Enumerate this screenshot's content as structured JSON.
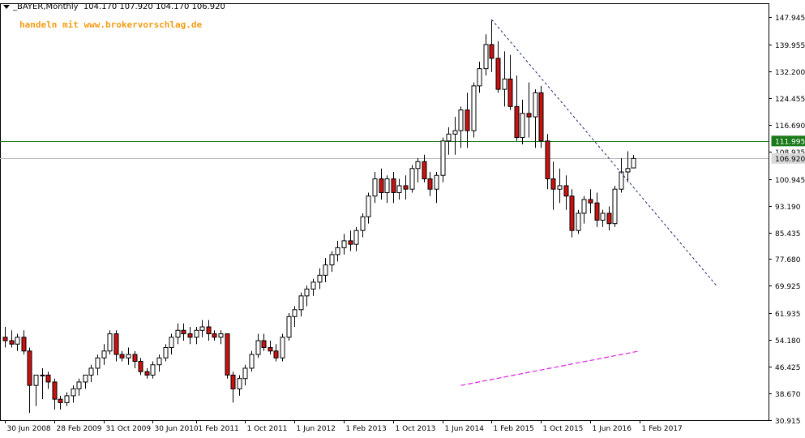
{
  "header": {
    "title": "_BAYER,Monthly",
    "ohlc": "104.170 107.920 104.170 106.920"
  },
  "watermark": "handeln mit www.brokervorschlag.de",
  "colors": {
    "bull_body": "#ffffff",
    "bear_body": "#cc1111",
    "candle_outline": "#000000",
    "grid": "#000000",
    "resistance_line": "#1a7a1a",
    "price_line": "#b8b8b8",
    "trendline": "#1a2a6c",
    "ma_line": "#e020e0"
  },
  "chart_data": {
    "type": "candlestick",
    "ylim": [
      30.915,
      152.0
    ],
    "y_ticks": [
      "147.945",
      "139.955",
      "132.200",
      "124.455",
      "116.690",
      "108.935",
      "100.945",
      "93.190",
      "85.435",
      "77.680",
      "69.925",
      "61.935",
      "54.180",
      "46.425",
      "38.670",
      "30.915"
    ],
    "x_ticks": [
      {
        "label": "30 Jun 2008",
        "index": 0
      },
      {
        "label": "28 Feb 2009",
        "index": 8
      },
      {
        "label": "31 Oct 2009",
        "index": 16
      },
      {
        "label": "30 Jun 2010",
        "index": 24
      },
      {
        "label": "1 Feb 2011",
        "index": 31
      },
      {
        "label": "1 Oct 2011",
        "index": 39
      },
      {
        "label": "1 Jun 2012",
        "index": 47
      },
      {
        "label": "1 Feb 2013",
        "index": 55
      },
      {
        "label": "1 Oct 2013",
        "index": 63
      },
      {
        "label": "1 Jun 2014",
        "index": 71
      },
      {
        "label": "1 Feb 2015",
        "index": 79
      },
      {
        "label": "1 Oct 2015",
        "index": 87
      },
      {
        "label": "1 Jun 2016",
        "index": 95
      },
      {
        "label": "1 Feb 2017",
        "index": 103
      }
    ],
    "ohlc": [
      [
        55,
        58,
        52,
        54
      ],
      [
        54,
        57,
        52,
        53
      ],
      [
        53,
        56,
        51,
        55
      ],
      [
        55,
        57,
        50,
        51
      ],
      [
        51,
        52,
        33,
        41
      ],
      [
        41,
        44,
        35,
        44
      ],
      [
        44,
        46,
        37,
        44
      ],
      [
        44,
        45,
        40,
        42
      ],
      [
        42,
        43,
        34,
        37
      ],
      [
        37,
        38,
        34,
        36
      ],
      [
        36,
        39,
        35,
        38
      ],
      [
        38,
        41,
        36,
        40
      ],
      [
        40,
        43,
        38,
        42
      ],
      [
        42,
        44,
        40,
        44
      ],
      [
        44,
        47,
        42,
        46
      ],
      [
        46,
        50,
        44,
        49
      ],
      [
        49,
        53,
        47,
        51
      ],
      [
        51,
        57,
        50,
        56
      ],
      [
        56,
        57,
        48,
        50
      ],
      [
        50,
        51,
        48,
        49
      ],
      [
        49,
        52,
        47,
        50
      ],
      [
        50,
        51,
        46,
        48
      ],
      [
        48,
        49,
        44,
        45
      ],
      [
        45,
        46,
        43,
        44
      ],
      [
        44,
        48,
        43,
        47
      ],
      [
        47,
        50,
        45,
        49
      ],
      [
        49,
        53,
        48,
        52
      ],
      [
        52,
        56,
        50,
        55
      ],
      [
        55,
        59,
        53,
        57
      ],
      [
        57,
        59,
        54,
        56
      ],
      [
        56,
        58,
        53,
        55
      ],
      [
        55,
        58,
        53,
        57
      ],
      [
        57,
        60,
        55,
        58
      ],
      [
        58,
        60,
        54,
        56
      ],
      [
        56,
        57,
        54,
        55
      ],
      [
        55,
        57,
        53,
        56
      ],
      [
        56,
        56,
        43,
        44
      ],
      [
        44,
        45,
        36,
        40
      ],
      [
        40,
        44,
        38,
        43
      ],
      [
        43,
        47,
        41,
        46
      ],
      [
        46,
        51,
        45,
        50
      ],
      [
        50,
        56,
        49,
        54
      ],
      [
        54,
        56,
        51,
        52
      ],
      [
        52,
        54,
        50,
        51
      ],
      [
        51,
        53,
        48,
        49
      ],
      [
        49,
        56,
        48,
        55
      ],
      [
        55,
        62,
        54,
        61
      ],
      [
        61,
        64,
        58,
        63
      ],
      [
        63,
        68,
        61,
        67
      ],
      [
        67,
        70,
        64,
        69
      ],
      [
        69,
        72,
        67,
        71
      ],
      [
        71,
        75,
        69,
        73
      ],
      [
        73,
        78,
        71,
        76
      ],
      [
        76,
        80,
        74,
        79
      ],
      [
        79,
        83,
        77,
        81
      ],
      [
        81,
        85,
        79,
        83
      ],
      [
        83,
        86,
        80,
        82
      ],
      [
        82,
        87,
        80,
        86
      ],
      [
        86,
        91,
        84,
        90
      ],
      [
        90,
        97,
        88,
        96
      ],
      [
        96,
        103,
        94,
        101
      ],
      [
        101,
        104,
        95,
        97
      ],
      [
        97,
        102,
        94,
        101
      ],
      [
        101,
        103,
        94,
        97
      ],
      [
        97,
        101,
        95,
        99
      ],
      [
        99,
        102,
        95,
        98
      ],
      [
        98,
        105,
        97,
        104
      ],
      [
        104,
        107,
        100,
        106
      ],
      [
        106,
        108,
        100,
        101
      ],
      [
        101,
        103,
        96,
        98
      ],
      [
        98,
        103,
        94,
        102
      ],
      [
        102,
        113,
        100,
        112
      ],
      [
        112,
        116,
        108,
        114
      ],
      [
        114,
        119,
        108,
        115
      ],
      [
        115,
        122,
        110,
        121
      ],
      [
        121,
        126,
        110,
        115
      ],
      [
        115,
        129,
        113,
        128
      ],
      [
        128,
        135,
        126,
        133
      ],
      [
        133,
        143,
        131,
        140
      ],
      [
        140,
        147,
        132,
        136
      ],
      [
        136,
        141,
        126,
        127
      ],
      [
        127,
        138,
        122,
        130
      ],
      [
        130,
        137,
        121,
        122
      ],
      [
        122,
        131,
        112,
        113
      ],
      [
        113,
        124,
        111,
        120
      ],
      [
        120,
        129,
        113,
        119
      ],
      [
        119,
        127,
        110,
        126
      ],
      [
        126,
        128,
        110,
        112
      ],
      [
        112,
        114,
        98,
        101
      ],
      [
        101,
        106,
        92,
        98
      ],
      [
        98,
        104,
        94,
        99
      ],
      [
        99,
        102,
        92,
        96
      ],
      [
        96,
        98,
        84,
        86
      ],
      [
        86,
        92,
        85,
        91
      ],
      [
        91,
        96,
        88,
        95
      ],
      [
        95,
        98,
        91,
        94
      ],
      [
        94,
        97,
        87,
        89
      ],
      [
        89,
        92,
        87,
        91
      ],
      [
        91,
        93,
        86,
        88
      ],
      [
        88,
        99,
        87,
        98
      ],
      [
        98,
        107,
        97,
        103
      ],
      [
        103,
        109,
        100,
        104
      ],
      [
        104.17,
        107.92,
        104.17,
        106.92
      ]
    ],
    "overlays": {
      "resistance_level": 111.995,
      "last_price": 106.92,
      "price_labels": [
        "111.995",
        "106.920"
      ],
      "trendline": {
        "from": {
          "index": 79,
          "price": 147.3
        },
        "to": {
          "index": 115.5,
          "price": 70.0
        }
      },
      "moving_average": {
        "from": {
          "index": 74,
          "price": 41.0
        },
        "to": {
          "index": 103,
          "price": 51.0
        }
      }
    }
  }
}
